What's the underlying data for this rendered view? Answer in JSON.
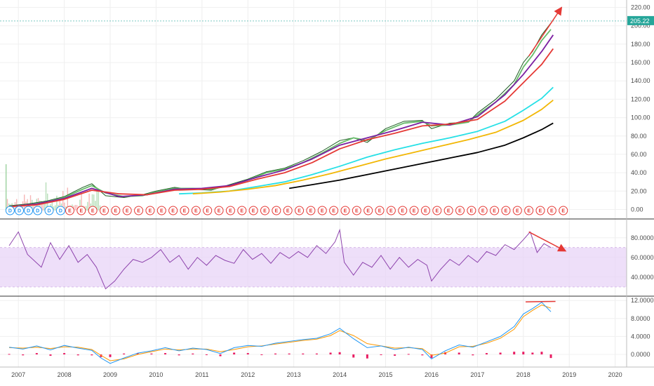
{
  "chart_data": [
    {
      "type": "line",
      "panel": "price",
      "title": "",
      "xlabel": "",
      "ylabel": "",
      "x_ticks": [
        "2007",
        "2008",
        "2009",
        "2010",
        "2011",
        "2012",
        "2013",
        "2014",
        "2015",
        "2016",
        "2017",
        "2018",
        "2019",
        "2020"
      ],
      "y_ticks": [
        "0.00",
        "20.00",
        "40.00",
        "60.00",
        "80.00",
        "100.00",
        "120.00",
        "140.00",
        "160.00",
        "180.00",
        "200.00",
        "220.00"
      ],
      "ylim": [
        -5,
        225
      ],
      "xlim": [
        2006.6,
        2020.25
      ],
      "grid": true,
      "last_value_label": "205.22",
      "last_value": 205.22,
      "colors": {
        "price": "#2e7d32",
        "last_value": "#26a69a",
        "arrow": "#e53935"
      },
      "series": [
        {
          "color": "#1b5e20",
          "x": [
            2006.8,
            2007.2,
            2007.6,
            2008.0,
            2008.4,
            2008.6,
            2008.9,
            2009.3,
            2009.7,
            2010.0,
            2010.4,
            2010.8,
            2011.2,
            2011.6,
            2012.0,
            2012.4,
            2012.8,
            2013.2,
            2013.6,
            2014.0,
            2014.3,
            2014.6,
            2015.0,
            2015.4,
            2015.8,
            2016.0,
            2016.4,
            2016.8,
            2017.0,
            2017.4,
            2017.8,
            2018.0,
            2018.2,
            2018.4,
            2018.6
          ],
          "values": [
            4,
            6,
            9,
            14,
            24,
            28,
            15,
            13,
            16,
            20,
            24,
            22,
            21,
            27,
            33,
            41,
            45,
            53,
            63,
            75,
            78,
            73,
            88,
            96,
            97,
            88,
            94,
            95,
            105,
            120,
            140,
            160,
            172,
            190,
            203
          ]
        },
        {
          "color": "#66bb6a",
          "x": [
            2006.8,
            2007.2,
            2007.6,
            2008.0,
            2008.4,
            2008.6,
            2008.9,
            2009.3,
            2009.7,
            2010.0,
            2010.4,
            2010.8,
            2011.2,
            2011.6,
            2012.0,
            2012.4,
            2012.8,
            2013.2,
            2013.6,
            2014.0,
            2014.3,
            2014.6,
            2015.0,
            2015.4,
            2015.8,
            2016.0,
            2016.4,
            2016.8,
            2017.0,
            2017.4,
            2017.8,
            2018.0,
            2018.2,
            2018.4,
            2018.6
          ],
          "values": [
            3,
            5,
            8,
            13,
            22,
            26,
            18,
            14,
            15,
            19,
            23,
            23,
            22,
            26,
            32,
            40,
            44,
            51,
            61,
            72,
            78,
            75,
            86,
            94,
            96,
            91,
            92,
            95,
            103,
            117,
            136,
            155,
            168,
            184,
            196
          ]
        },
        {
          "color": "#7b1fa2",
          "x": [
            2006.8,
            2007.4,
            2008.0,
            2008.6,
            2009.2,
            2009.8,
            2010.4,
            2011.0,
            2011.6,
            2012.2,
            2012.8,
            2013.4,
            2014.0,
            2014.6,
            2015.2,
            2015.8,
            2016.4,
            2017.0,
            2017.6,
            2018.0,
            2018.4,
            2018.65
          ],
          "values": [
            3,
            6,
            12,
            23,
            14,
            16,
            22,
            23,
            26,
            35,
            43,
            55,
            70,
            78,
            86,
            95,
            92,
            101,
            125,
            147,
            172,
            190
          ]
        },
        {
          "color": "#e53935",
          "x": [
            2006.8,
            2007.4,
            2008.0,
            2008.6,
            2009.2,
            2009.8,
            2010.4,
            2011.0,
            2011.6,
            2012.2,
            2012.8,
            2013.4,
            2014.0,
            2014.6,
            2015.2,
            2015.8,
            2016.4,
            2017.0,
            2017.6,
            2018.0,
            2018.4,
            2018.65
          ],
          "values": [
            3,
            5,
            11,
            21,
            17,
            16,
            21,
            22,
            25,
            33,
            40,
            51,
            66,
            76,
            83,
            91,
            93,
            98,
            118,
            138,
            158,
            175
          ]
        },
        {
          "color": "#26e0e6",
          "x": [
            2010.5,
            2011.0,
            2011.6,
            2012.2,
            2012.8,
            2013.4,
            2014.0,
            2014.6,
            2015.2,
            2015.8,
            2016.4,
            2017.0,
            2017.6,
            2018.0,
            2018.4,
            2018.65
          ],
          "values": [
            17,
            18,
            20,
            25,
            30,
            38,
            47,
            57,
            65,
            72,
            78,
            85,
            96,
            108,
            121,
            133
          ]
        },
        {
          "color": "#f2b705",
          "x": [
            2010.8,
            2011.4,
            2012.0,
            2012.6,
            2013.2,
            2013.8,
            2014.4,
            2015.0,
            2015.6,
            2016.2,
            2016.8,
            2017.4,
            2018.0,
            2018.4,
            2018.65
          ],
          "values": [
            17,
            19,
            22,
            26,
            32,
            39,
            47,
            55,
            62,
            69,
            76,
            84,
            97,
            109,
            119
          ]
        },
        {
          "color": "#000000",
          "x": [
            2012.9,
            2013.4,
            2014.0,
            2014.6,
            2015.2,
            2015.8,
            2016.4,
            2017.0,
            2017.6,
            2018.0,
            2018.4,
            2018.65
          ],
          "values": [
            23,
            27,
            32,
            38,
            44,
            50,
            56,
            62,
            70,
            78,
            87,
            94
          ]
        }
      ],
      "markers": [
        {
          "label": "D",
          "x": [
            2006.82,
            2007.02,
            2007.22,
            2007.42,
            2007.67,
            2007.92
          ]
        },
        {
          "label": "E",
          "x": [
            2008.12,
            2008.37,
            2008.62,
            2008.87,
            2009.12,
            2009.37,
            2009.62,
            2009.87,
            2010.12,
            2010.37,
            2010.62,
            2010.87,
            2011.12,
            2011.37,
            2011.62,
            2011.87,
            2012.12,
            2012.37,
            2012.62,
            2012.87,
            2013.12,
            2013.37,
            2013.62,
            2013.87,
            2014.12,
            2014.37,
            2014.62,
            2014.87,
            2015.12,
            2015.37,
            2015.62,
            2015.87,
            2016.12,
            2016.37,
            2016.62,
            2016.87,
            2017.12,
            2017.37,
            2017.62,
            2017.87,
            2018.12,
            2018.37,
            2018.62,
            2018.87
          ]
        }
      ]
    },
    {
      "type": "line",
      "panel": "rsi",
      "y_ticks": [
        "40.0000",
        "60.0000",
        "80.0000"
      ],
      "ylim": [
        22,
        97
      ],
      "band": [
        30,
        70
      ],
      "colors": {
        "line": "#8e44ad",
        "band": "#e1bee7"
      },
      "x": [
        2006.8,
        2007.0,
        2007.2,
        2007.5,
        2007.7,
        2007.9,
        2008.1,
        2008.3,
        2008.5,
        2008.7,
        2008.9,
        2009.1,
        2009.3,
        2009.5,
        2009.7,
        2009.9,
        2010.1,
        2010.3,
        2010.5,
        2010.7,
        2010.9,
        2011.1,
        2011.3,
        2011.5,
        2011.7,
        2011.9,
        2012.1,
        2012.3,
        2012.5,
        2012.7,
        2012.9,
        2013.1,
        2013.3,
        2013.5,
        2013.7,
        2013.9,
        2014.0,
        2014.1,
        2014.3,
        2014.5,
        2014.7,
        2014.9,
        2015.1,
        2015.3,
        2015.5,
        2015.7,
        2015.9,
        2016.0,
        2016.2,
        2016.4,
        2016.6,
        2016.8,
        2017.0,
        2017.2,
        2017.4,
        2017.6,
        2017.8,
        2018.0,
        2018.15,
        2018.3,
        2018.45,
        2018.6
      ],
      "values": [
        72,
        86,
        63,
        50,
        75,
        58,
        72,
        55,
        63,
        50,
        28,
        36,
        48,
        58,
        55,
        60,
        68,
        55,
        62,
        48,
        60,
        52,
        62,
        57,
        54,
        68,
        58,
        64,
        54,
        65,
        59,
        66,
        60,
        72,
        64,
        76,
        88,
        55,
        42,
        55,
        50,
        62,
        48,
        60,
        50,
        58,
        52,
        36,
        48,
        58,
        52,
        62,
        55,
        66,
        62,
        73,
        68,
        78,
        86,
        65,
        74,
        70
      ]
    },
    {
      "type": "line",
      "panel": "macd",
      "y_ticks": [
        "0.0000",
        "4.0000",
        "8.0000",
        "12.0000"
      ],
      "ylim": [
        -2.5,
        12.5
      ],
      "colors": {
        "macd": "#2196f3",
        "signal": "#ff9800",
        "histogram": "#e91e63",
        "arrow": "#e53935"
      },
      "x": [
        2006.8,
        2007.1,
        2007.4,
        2007.7,
        2008.0,
        2008.3,
        2008.6,
        2008.8,
        2009.0,
        2009.3,
        2009.6,
        2009.9,
        2010.2,
        2010.5,
        2010.8,
        2011.1,
        2011.4,
        2011.7,
        2012.0,
        2012.3,
        2012.6,
        2012.9,
        2013.2,
        2013.5,
        2013.8,
        2014.0,
        2014.3,
        2014.6,
        2014.9,
        2015.2,
        2015.5,
        2015.8,
        2016.0,
        2016.3,
        2016.6,
        2016.9,
        2017.2,
        2017.5,
        2017.8,
        2018.0,
        2018.2,
        2018.4,
        2018.6
      ],
      "macd": [
        1.6,
        1.2,
        1.9,
        1.0,
        2.0,
        1.4,
        0.9,
        -0.8,
        -2.0,
        -0.8,
        0.3,
        0.8,
        1.5,
        0.8,
        1.4,
        1.1,
        0.2,
        1.5,
        2.0,
        1.8,
        2.5,
        2.9,
        3.3,
        3.6,
        4.6,
        5.8,
        3.5,
        1.5,
        1.9,
        1.1,
        1.6,
        1.1,
        -1.0,
        0.8,
        2.1,
        1.6,
        2.8,
        4.0,
        6.2,
        9.0,
        10.2,
        11.6,
        9.5
      ],
      "signal": [
        1.5,
        1.4,
        1.6,
        1.3,
        1.7,
        1.6,
        1.1,
        -0.2,
        -1.4,
        -1.0,
        0.0,
        0.6,
        1.2,
        1.0,
        1.2,
        1.2,
        0.6,
        1.1,
        1.7,
        1.9,
        2.3,
        2.7,
        3.1,
        3.4,
        4.2,
        5.3,
        4.2,
        2.4,
        1.9,
        1.4,
        1.5,
        1.3,
        -0.2,
        0.3,
        1.7,
        1.8,
        2.5,
        3.6,
        5.6,
        8.4,
        9.8,
        11.0,
        10.3
      ],
      "histogram": [
        0.1,
        -0.2,
        0.3,
        -0.3,
        0.3,
        -0.2,
        -0.2,
        -0.6,
        -0.6,
        0.2,
        0.3,
        0.2,
        0.3,
        -0.2,
        0.2,
        -0.1,
        -0.4,
        0.4,
        0.3,
        -0.1,
        0.2,
        0.2,
        0.2,
        0.2,
        0.4,
        0.5,
        -0.7,
        -0.9,
        0.0,
        -0.3,
        0.1,
        -0.2,
        -0.8,
        0.5,
        0.4,
        -0.2,
        0.3,
        0.4,
        0.6,
        0.6,
        0.4,
        0.6,
        -0.8
      ]
    }
  ]
}
